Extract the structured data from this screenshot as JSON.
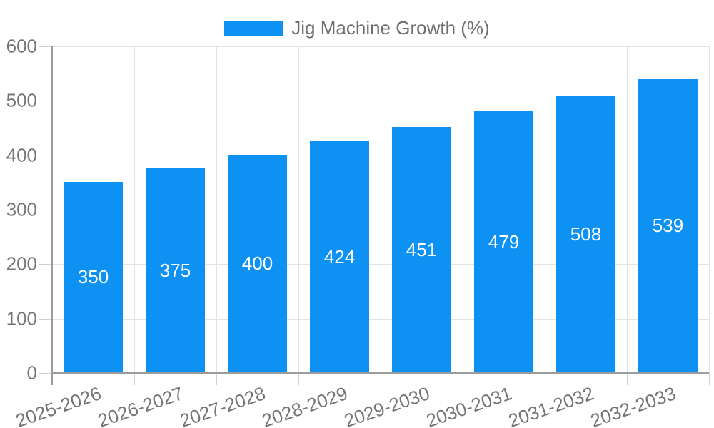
{
  "chart_data": {
    "type": "bar",
    "title": "",
    "legend": "Jig Machine Growth (%)",
    "legend_position": "top-center",
    "categories": [
      "2025-2026",
      "2026-2027",
      "2027-2028",
      "2028-2029",
      "2029-2030",
      "2030-2031",
      "2031-2032",
      "2032-2033"
    ],
    "values": [
      350,
      375,
      400,
      424,
      451,
      479,
      508,
      539
    ],
    "value_labels": [
      "350",
      "375",
      "400",
      "424",
      "451",
      "479",
      "508",
      "539"
    ],
    "xlabel": "",
    "ylabel": "",
    "ylim": [
      0,
      600
    ],
    "yticks": [
      0,
      100,
      200,
      300,
      400,
      500,
      600
    ],
    "grid": true,
    "colors": {
      "bar": "#0d92f4",
      "value_label": "#ffffff",
      "axis_text": "#757575",
      "legend_text": "#6e6e6e",
      "gridline": "#e3e3e3",
      "tick": "#cfcfcf",
      "axis_line": "#9b9b9b",
      "background": "#ffffff"
    }
  }
}
